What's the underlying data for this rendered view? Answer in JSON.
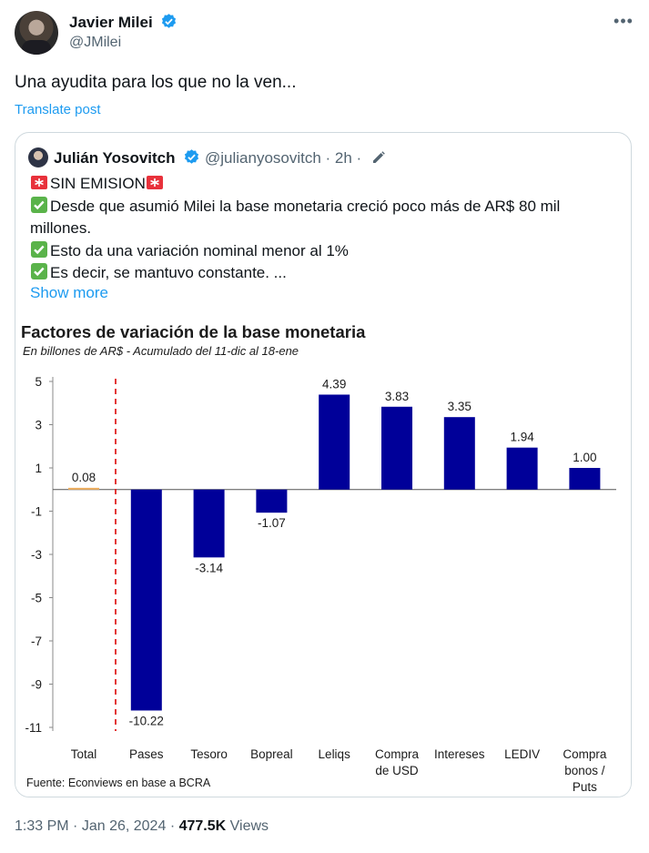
{
  "post": {
    "author_name": "Javier Milei",
    "author_handle": "@JMilei",
    "text": "Una ayudita para los que no la ven...",
    "translate_label": "Translate post",
    "time": "1:33 PM",
    "date": "Jan 26, 2024",
    "views_count": "477.5K",
    "views_label": "Views",
    "separator": "·"
  },
  "quote": {
    "author_name": "Julián Yosovitch",
    "handle_meta": "@julianyosovitch · 2h ·",
    "lines": [
      "SIN EMISION",
      "Desde que asumió Milei la base monetaria creció poco más de AR$ 80 mil millones.",
      "Esto da una variación nominal menor al 1%",
      "Es decir, se mantuvo constante. ..."
    ],
    "show_more": "Show more"
  },
  "chart_data": {
    "type": "bar",
    "title": "Factores de variación de la base monetaria",
    "subtitle": "En billones de AR$  - Acumulado del 11-dic al 18-ene",
    "source": "Fuente: Econviews en base a BCRA",
    "categories": [
      [
        "Total"
      ],
      [
        "Pases"
      ],
      [
        "Tesoro"
      ],
      [
        "Bopreal"
      ],
      [
        "Leliqs"
      ],
      [
        "Compra",
        "de USD"
      ],
      [
        "Intereses"
      ],
      [
        "LEDIV"
      ],
      [
        "Compra",
        "bonos /",
        "Puts"
      ]
    ],
    "values": [
      0.08,
      -10.22,
      -3.14,
      -1.07,
      4.39,
      3.83,
      3.35,
      1.94,
      1.0
    ],
    "value_labels": [
      "0.08",
      "-10.22",
      "-3.14",
      "-1.07",
      "4.39",
      "3.83",
      "3.35",
      "1.94",
      "1.00"
    ],
    "y_ticks": [
      "5",
      "3",
      "1",
      "-1",
      "-3",
      "-5",
      "-7",
      "-9",
      "-11"
    ],
    "ylim": [
      -11,
      5
    ],
    "colors": {
      "bar": "#000099",
      "total": "#f0b060",
      "divider": "#e02020"
    },
    "grid": false,
    "legend": false
  },
  "colors": {
    "link": "#1d9bf0",
    "verified": "#1d9bf0",
    "muted": "#536471"
  }
}
